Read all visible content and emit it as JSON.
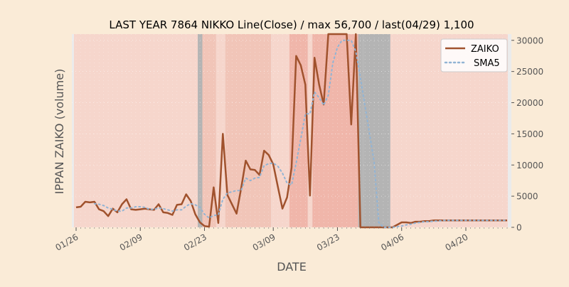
{
  "colors": {
    "figure_bg": "#faebd7",
    "plot_bg": "#ebebeb",
    "zaiko": "#a0522d",
    "sma5": "#92b4d4",
    "text": "#000000",
    "axis_text": "#555555",
    "stripe_light": "#f7d4c9",
    "stripe_mid": "#f2c1b3",
    "stripe_strong": "#f1b0a3",
    "stripe_gray": "#aeaeae"
  },
  "chart_data": {
    "type": "line",
    "title": "LAST YEAR 7864 NIKKO Line(Close) / max 56,700 / last(04/29) 1,100",
    "xlabel": "DATE",
    "ylabel": "IPPAN ZAIKO (volume)",
    "x_start": "01/26",
    "x_end": "04/29",
    "xticks": [
      "01/26",
      "02/09",
      "02/23",
      "03/09",
      "03/23",
      "04/06",
      "04/20"
    ],
    "yticks": [
      0,
      5000,
      10000,
      15000,
      20000,
      25000,
      30000
    ],
    "ytick_labels": [
      "0",
      "5000",
      "10000",
      "15000",
      "20000",
      "25000",
      "30000"
    ],
    "ylim": [
      0,
      31000
    ],
    "grid": true,
    "legend_position": "top-right",
    "background_bands": [
      {
        "from": "01/26",
        "to": "02/22",
        "shade": "light"
      },
      {
        "from": "02/22",
        "to": "02/23",
        "shade": "gray"
      },
      {
        "from": "02/23",
        "to": "02/26",
        "shade": "mid"
      },
      {
        "from": "02/26",
        "to": "02/28",
        "shade": "light"
      },
      {
        "from": "02/28",
        "to": "03/09",
        "shade": "mid"
      },
      {
        "from": "03/09",
        "to": "03/13",
        "shade": "light"
      },
      {
        "from": "03/13",
        "to": "03/17",
        "shade": "strong"
      },
      {
        "from": "03/17",
        "to": "03/18",
        "shade": "light"
      },
      {
        "from": "03/18",
        "to": "03/28",
        "shade": "strong"
      },
      {
        "from": "03/28",
        "to": "03/29",
        "shade": "gray"
      },
      {
        "from": "03/29",
        "to": "04/04",
        "shade": "gray"
      },
      {
        "from": "04/04",
        "to": "04/30",
        "shade": "light"
      }
    ],
    "series": [
      {
        "name": "ZAIKO",
        "style": "solid",
        "points": [
          [
            "01/26",
            3200
          ],
          [
            "01/27",
            3300
          ],
          [
            "01/28",
            4100
          ],
          [
            "01/29",
            4000
          ],
          [
            "01/30",
            4100
          ],
          [
            "01/31",
            2900
          ],
          [
            "02/01",
            2600
          ],
          [
            "02/02",
            1800
          ],
          [
            "02/03",
            3000
          ],
          [
            "02/04",
            2400
          ],
          [
            "02/05",
            3700
          ],
          [
            "02/06",
            4500
          ],
          [
            "02/07",
            2900
          ],
          [
            "02/08",
            2800
          ],
          [
            "02/09",
            2900
          ],
          [
            "02/10",
            3000
          ],
          [
            "02/11",
            2900
          ],
          [
            "02/12",
            2800
          ],
          [
            "02/13",
            3700
          ],
          [
            "02/14",
            2400
          ],
          [
            "02/15",
            2300
          ],
          [
            "02/16",
            2000
          ],
          [
            "02/17",
            3600
          ],
          [
            "02/18",
            3700
          ],
          [
            "02/19",
            5300
          ],
          [
            "02/20",
            4200
          ],
          [
            "02/21",
            2100
          ],
          [
            "02/22",
            800
          ],
          [
            "02/23",
            200
          ],
          [
            "02/24",
            100
          ],
          [
            "02/25",
            6400
          ],
          [
            "02/26",
            700
          ],
          [
            "02/27",
            15000
          ],
          [
            "02/28",
            5200
          ],
          [
            "03/01",
            2200
          ],
          [
            "03/02",
            6300
          ],
          [
            "03/03",
            10700
          ],
          [
            "03/04",
            9300
          ],
          [
            "03/05",
            9200
          ],
          [
            "03/06",
            8400
          ],
          [
            "03/07",
            12300
          ],
          [
            "03/08",
            11600
          ],
          [
            "03/09",
            10100
          ],
          [
            "03/10",
            6500
          ],
          [
            "03/11",
            3000
          ],
          [
            "03/12",
            4800
          ],
          [
            "03/13",
            9600
          ],
          [
            "03/14",
            27500
          ],
          [
            "03/15",
            26000
          ],
          [
            "03/16",
            22900
          ],
          [
            "03/17",
            5100
          ],
          [
            "03/18",
            27200
          ],
          [
            "03/19",
            22900
          ],
          [
            "03/20",
            19700
          ],
          [
            "03/21",
            31000
          ],
          [
            "03/22",
            31000
          ],
          [
            "03/23",
            31000
          ],
          [
            "03/24",
            31000
          ],
          [
            "03/25",
            31000
          ],
          [
            "03/26",
            16500
          ],
          [
            "03/27",
            31000
          ],
          [
            "03/28",
            0
          ],
          [
            "03/29",
            0
          ],
          [
            "03/30",
            0
          ],
          [
            "03/31",
            0
          ],
          [
            "04/01",
            0
          ],
          [
            "04/02",
            0
          ],
          [
            "04/03",
            0
          ],
          [
            "04/04",
            0
          ],
          [
            "04/05",
            400
          ],
          [
            "04/06",
            800
          ],
          [
            "04/07",
            800
          ],
          [
            "04/08",
            700
          ],
          [
            "04/09",
            900
          ],
          [
            "04/10",
            900
          ],
          [
            "04/11",
            1000
          ],
          [
            "04/12",
            1000
          ],
          [
            "04/13",
            1100
          ],
          [
            "04/14",
            1100
          ],
          [
            "04/15",
            1100
          ],
          [
            "04/16",
            1100
          ],
          [
            "04/17",
            1100
          ],
          [
            "04/18",
            1100
          ],
          [
            "04/19",
            1100
          ],
          [
            "04/20",
            1100
          ],
          [
            "04/21",
            1100
          ],
          [
            "04/22",
            1100
          ],
          [
            "04/23",
            1100
          ],
          [
            "04/24",
            1100
          ],
          [
            "04/25",
            1100
          ],
          [
            "04/26",
            1100
          ],
          [
            "04/27",
            1100
          ],
          [
            "04/28",
            1100
          ],
          [
            "04/29",
            1100
          ]
        ]
      },
      {
        "name": "SMA5",
        "style": "dotted",
        "points": [
          [
            "01/30",
            3800
          ],
          [
            "01/31",
            3700
          ],
          [
            "02/01",
            3500
          ],
          [
            "02/02",
            3100
          ],
          [
            "02/03",
            2900
          ],
          [
            "02/04",
            2600
          ],
          [
            "02/05",
            2600
          ],
          [
            "02/06",
            3100
          ],
          [
            "02/07",
            3100
          ],
          [
            "02/08",
            3300
          ],
          [
            "02/09",
            3300
          ],
          [
            "02/10",
            3200
          ],
          [
            "02/11",
            2900
          ],
          [
            "02/12",
            2900
          ],
          [
            "02/13",
            3100
          ],
          [
            "02/14",
            3000
          ],
          [
            "02/15",
            2800
          ],
          [
            "02/16",
            2600
          ],
          [
            "02/17",
            2800
          ],
          [
            "02/18",
            2800
          ],
          [
            "02/19",
            3400
          ],
          [
            "02/20",
            3800
          ],
          [
            "02/21",
            3600
          ],
          [
            "02/22",
            3200
          ],
          [
            "02/23",
            2100
          ],
          [
            "02/24",
            1500
          ],
          [
            "02/25",
            1900
          ],
          [
            "02/26",
            2000
          ],
          [
            "02/27",
            4500
          ],
          [
            "02/28",
            5500
          ],
          [
            "03/01",
            5900
          ],
          [
            "03/02",
            5900
          ],
          [
            "03/03",
            7900
          ],
          [
            "03/04",
            7500
          ],
          [
            "03/05",
            7900
          ],
          [
            "03/06",
            8000
          ],
          [
            "03/07",
            9900
          ],
          [
            "03/08",
            10200
          ],
          [
            "03/09",
            10300
          ],
          [
            "03/10",
            9800
          ],
          [
            "03/11",
            8700
          ],
          [
            "03/12",
            7100
          ],
          [
            "03/13",
            6800
          ],
          [
            "03/14",
            10300
          ],
          [
            "03/15",
            14200
          ],
          [
            "03/16",
            18200
          ],
          [
            "03/17",
            18200
          ],
          [
            "03/18",
            21700
          ],
          [
            "03/19",
            20800
          ],
          [
            "03/20",
            19600
          ],
          [
            "03/21",
            21200
          ],
          [
            "03/22",
            26400
          ],
          [
            "03/23",
            28900
          ],
          [
            "03/24",
            30000
          ],
          [
            "03/25",
            30000
          ],
          [
            "03/26",
            30000
          ],
          [
            "03/27",
            28200
          ],
          [
            "03/28",
            24000
          ],
          [
            "03/29",
            19500
          ],
          [
            "03/30",
            15000
          ],
          [
            "03/31",
            10500
          ],
          [
            "04/01",
            800
          ],
          [
            "04/02",
            0
          ],
          [
            "04/03",
            0
          ],
          [
            "04/04",
            0
          ],
          [
            "04/05",
            100
          ],
          [
            "04/06",
            200
          ],
          [
            "04/07",
            400
          ],
          [
            "04/08",
            500
          ],
          [
            "04/09",
            700
          ],
          [
            "04/10",
            800
          ],
          [
            "04/11",
            900
          ],
          [
            "04/12",
            900
          ],
          [
            "04/13",
            1000
          ],
          [
            "04/14",
            1000
          ],
          [
            "04/15",
            1100
          ],
          [
            "04/16",
            1100
          ],
          [
            "04/17",
            1100
          ],
          [
            "04/18",
            1100
          ],
          [
            "04/19",
            1100
          ],
          [
            "04/20",
            1100
          ],
          [
            "04/21",
            1100
          ],
          [
            "04/22",
            1100
          ],
          [
            "04/23",
            1100
          ],
          [
            "04/24",
            1100
          ],
          [
            "04/25",
            1100
          ],
          [
            "04/26",
            1100
          ],
          [
            "04/27",
            1100
          ],
          [
            "04/28",
            1100
          ],
          [
            "04/29",
            1100
          ]
        ]
      }
    ]
  }
}
